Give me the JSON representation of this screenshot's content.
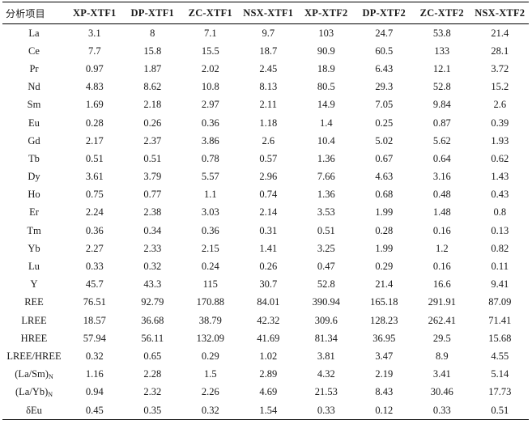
{
  "table": {
    "corner_header": "分析项目",
    "columns": [
      "XP-XTF1",
      "DP-XTF1",
      "ZC-XTF1",
      "NSX-XTF1",
      "XP-XTF2",
      "DP-XTF2",
      "ZC-XTF2",
      "NSX-XTF2"
    ],
    "rows": [
      {
        "label": "La",
        "values": [
          "3.1",
          "8",
          "7.1",
          "9.7",
          "103",
          "24.7",
          "53.8",
          "21.4"
        ]
      },
      {
        "label": "Ce",
        "values": [
          "7.7",
          "15.8",
          "15.5",
          "18.7",
          "90.9",
          "60.5",
          "133",
          "28.1"
        ]
      },
      {
        "label": "Pr",
        "values": [
          "0.97",
          "1.87",
          "2.02",
          "2.45",
          "18.9",
          "6.43",
          "12.1",
          "3.72"
        ]
      },
      {
        "label": "Nd",
        "values": [
          "4.83",
          "8.62",
          "10.8",
          "8.13",
          "80.5",
          "29.3",
          "52.8",
          "15.2"
        ]
      },
      {
        "label": "Sm",
        "values": [
          "1.69",
          "2.18",
          "2.97",
          "2.11",
          "14.9",
          "7.05",
          "9.84",
          "2.6"
        ]
      },
      {
        "label": "Eu",
        "values": [
          "0.28",
          "0.26",
          "0.36",
          "1.18",
          "1.4",
          "0.25",
          "0.87",
          "0.39"
        ]
      },
      {
        "label": "Gd",
        "values": [
          "2.17",
          "2.37",
          "3.86",
          "2.6",
          "10.4",
          "5.02",
          "5.62",
          "1.93"
        ]
      },
      {
        "label": "Tb",
        "values": [
          "0.51",
          "0.51",
          "0.78",
          "0.57",
          "1.36",
          "0.67",
          "0.64",
          "0.62"
        ]
      },
      {
        "label": "Dy",
        "values": [
          "3.61",
          "3.79",
          "5.57",
          "2.96",
          "7.66",
          "4.63",
          "3.16",
          "1.43"
        ]
      },
      {
        "label": "Ho",
        "values": [
          "0.75",
          "0.77",
          "1.1",
          "0.74",
          "1.36",
          "0.68",
          "0.48",
          "0.43"
        ]
      },
      {
        "label": "Er",
        "values": [
          "2.24",
          "2.38",
          "3.03",
          "2.14",
          "3.53",
          "1.99",
          "1.48",
          "0.8"
        ]
      },
      {
        "label": "Tm",
        "values": [
          "0.36",
          "0.34",
          "0.36",
          "0.31",
          "0.51",
          "0.28",
          "0.16",
          "0.13"
        ]
      },
      {
        "label": "Yb",
        "values": [
          "2.27",
          "2.33",
          "2.15",
          "1.41",
          "3.25",
          "1.99",
          "1.2",
          "0.82"
        ]
      },
      {
        "label": "Lu",
        "values": [
          "0.33",
          "0.32",
          "0.24",
          "0.26",
          "0.47",
          "0.29",
          "0.16",
          "0.11"
        ]
      },
      {
        "label": "Y",
        "values": [
          "45.7",
          "43.3",
          "115",
          "30.7",
          "52.8",
          "21.4",
          "16.6",
          "9.41"
        ]
      },
      {
        "label": "REE",
        "values": [
          "76.51",
          "92.79",
          "170.88",
          "84.01",
          "390.94",
          "165.18",
          "291.91",
          "87.09"
        ]
      },
      {
        "label": "LREE",
        "values": [
          "18.57",
          "36.68",
          "38.79",
          "42.32",
          "309.6",
          "128.23",
          "262.41",
          "71.41"
        ]
      },
      {
        "label": "HREE",
        "values": [
          "57.94",
          "56.11",
          "132.09",
          "41.69",
          "81.34",
          "36.95",
          "29.5",
          "15.68"
        ]
      },
      {
        "label": "LREE/HREE",
        "values": [
          "0.32",
          "0.65",
          "0.29",
          "1.02",
          "3.81",
          "3.47",
          "8.9",
          "4.55"
        ]
      },
      {
        "label": "(La/Sm)",
        "label_sub": "N",
        "values": [
          "1.16",
          "2.28",
          "1.5",
          "2.89",
          "4.32",
          "2.19",
          "3.41",
          "5.14"
        ]
      },
      {
        "label": "(La/Yb)",
        "label_sub": "N",
        "values": [
          "0.94",
          "2.32",
          "2.26",
          "4.69",
          "21.53",
          "8.43",
          "30.46",
          "17.73"
        ]
      },
      {
        "label": "δEu",
        "values": [
          "0.45",
          "0.35",
          "0.32",
          "1.54",
          "0.33",
          "0.12",
          "0.33",
          "0.51"
        ]
      }
    ]
  }
}
